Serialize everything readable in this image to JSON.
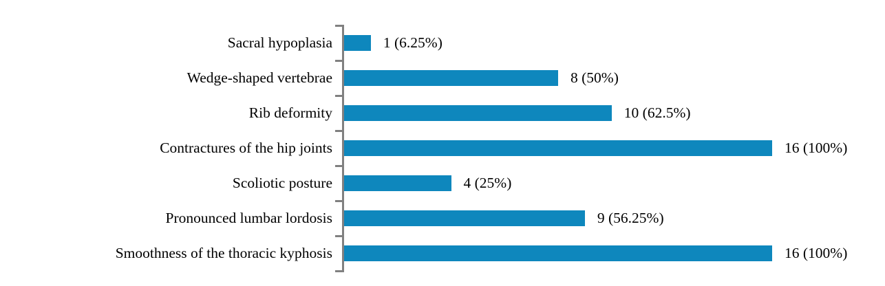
{
  "chart_data": {
    "type": "bar",
    "orientation": "horizontal",
    "title": "",
    "xlabel": "",
    "ylabel": "",
    "xlim": [
      0,
      16
    ],
    "grid": false,
    "legend": "none",
    "categories": [
      "Sacral hypoplasia",
      "Wedge-shaped vertebrae",
      "Rib deformity",
      "Contractures of the hip joints",
      "Scoliotic posture",
      "Pronounced lumbar lordosis",
      "Smoothness of the thoracic kyphosis"
    ],
    "values": [
      1,
      8,
      10,
      16,
      4,
      9,
      16
    ],
    "value_labels": [
      "1 (6.25%)",
      "8 (50%)",
      "10 (62.5%)",
      "16 (100%)",
      "4 (25%)",
      "9 (56.25%)",
      "16 (100%)"
    ],
    "colors": {
      "bar": "#0e87bd",
      "axis": "#808080",
      "text": "#000000",
      "background": "#ffffff"
    }
  }
}
